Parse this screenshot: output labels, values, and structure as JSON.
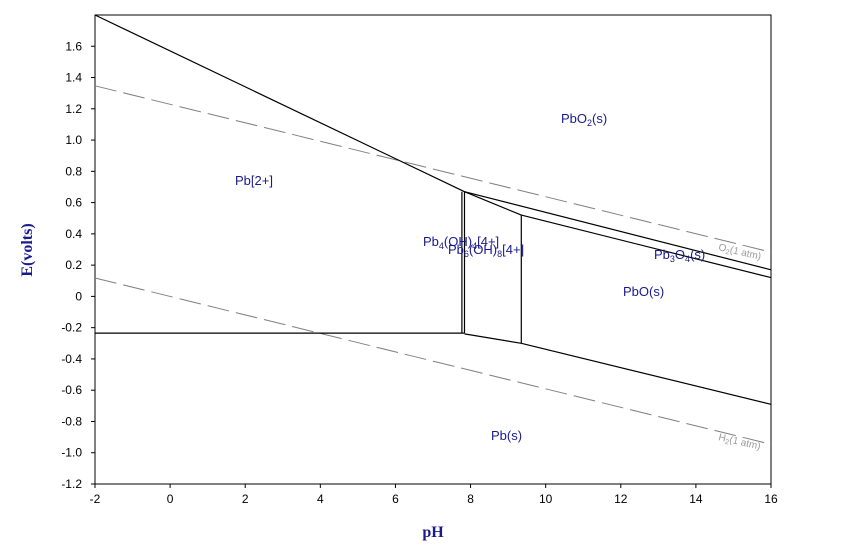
{
  "chart_data": {
    "type": "line",
    "xlabel": "pH",
    "ylabel": "E(volts)",
    "xlim": [
      -2,
      16
    ],
    "ylim": [
      -1.2,
      1.8
    ],
    "x_ticks": [
      -2,
      0,
      2,
      4,
      6,
      8,
      10,
      12,
      14,
      16
    ],
    "x_tick_labels": [
      "-2",
      "0",
      "2",
      "4",
      "6",
      "8",
      "10",
      "12",
      "14",
      "16"
    ],
    "y_ticks": [
      1.6,
      1.4,
      1.2,
      1.0,
      0.8,
      0.6,
      0.4,
      0.2,
      0,
      -0.2,
      -0.4,
      -0.6,
      -0.8,
      -1.0,
      -1.2
    ],
    "y_tick_labels": [
      "1.6",
      "1.4",
      "1.2",
      "1.0",
      "0.8",
      "0.6",
      "0.4",
      "0.2",
      "0",
      "-0.2",
      "-0.4",
      "-0.6",
      "-0.8",
      "-1.0",
      "-1.2"
    ],
    "boundaries": [
      {
        "points": [
          [
            -2,
            1.8
          ],
          [
            7.84,
            0.67
          ]
        ]
      },
      {
        "points": [
          [
            7.84,
            0.67
          ],
          [
            9.35,
            0.52
          ]
        ]
      },
      {
        "points": [
          [
            7.84,
            0.67
          ],
          [
            16,
            0.17
          ]
        ]
      },
      {
        "points": [
          [
            9.35,
            0.52
          ],
          [
            16,
            0.12
          ]
        ]
      },
      {
        "points": [
          [
            -2,
            -0.235
          ],
          [
            7.84,
            -0.235
          ]
        ]
      },
      {
        "points": [
          [
            7.84,
            -0.24
          ],
          [
            9.35,
            -0.3
          ]
        ]
      },
      {
        "points": [
          [
            9.35,
            -0.3
          ],
          [
            16,
            -0.69
          ]
        ]
      },
      {
        "points": [
          [
            7.77,
            0.67
          ],
          [
            7.77,
            -0.235
          ]
        ]
      },
      {
        "points": [
          [
            7.84,
            0.67
          ],
          [
            7.84,
            -0.235
          ]
        ]
      },
      {
        "points": [
          [
            9.35,
            0.52
          ],
          [
            9.35,
            -0.3
          ]
        ]
      }
    ],
    "reference_lines": [
      {
        "name": "O2(1 atm)",
        "style": "dashed",
        "color": "#808080",
        "points": [
          [
            -2,
            1.347
          ],
          [
            16,
            0.283
          ]
        ]
      },
      {
        "name": "H2(1 atm)",
        "style": "dashed",
        "color": "#808080",
        "points": [
          [
            -2,
            0.118
          ],
          [
            16,
            -0.946
          ]
        ]
      }
    ],
    "region_labels": [
      {
        "text": "Pb[2+]",
        "x": 2.3,
        "y": 0.74
      },
      {
        "text": "PbO2(s)",
        "x": 11.1,
        "y": 1.14
      },
      {
        "text": "Pb4(OH)[4+]",
        "x": 8.0,
        "y": 0.36
      },
      {
        "text": "Pb6(OH)8[4+]",
        "x": 8.9,
        "y": 0.3
      },
      {
        "text": "Pb3O4(s)",
        "x": 14.1,
        "y": 0.27
      },
      {
        "text": "PbO(s)",
        "x": 12.3,
        "y": 0.04
      },
      {
        "text": "Pb(s)",
        "x": 8.9,
        "y": -0.88
      }
    ],
    "grid": false,
    "legend": "none"
  }
}
